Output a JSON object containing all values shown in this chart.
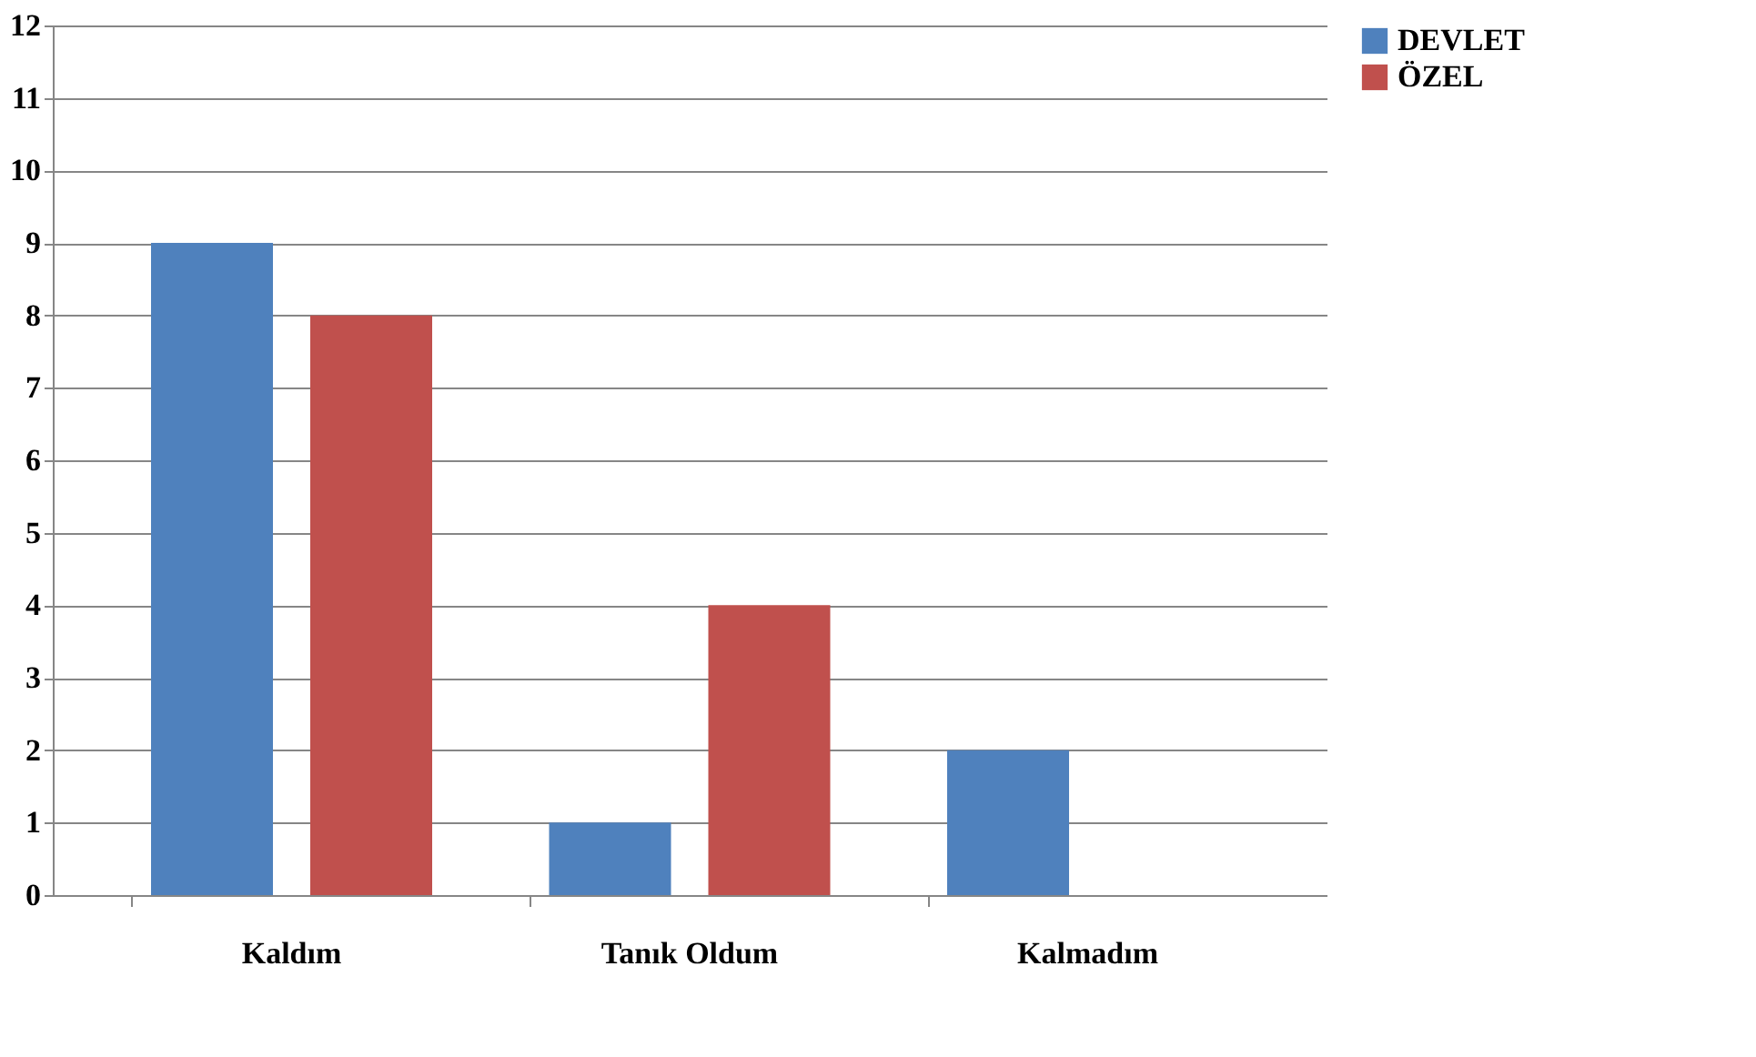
{
  "chart_data": {
    "type": "bar",
    "categories": [
      "Kaldım",
      "Tanık Oldum",
      "Kalmadım"
    ],
    "series": [
      {
        "name": "DEVLET",
        "color": "#4f81bd",
        "values": [
          9,
          1,
          2
        ]
      },
      {
        "name": "ÖZEL",
        "color": "#c0504d",
        "values": [
          8,
          4,
          0
        ]
      }
    ],
    "ylim": [
      0,
      12
    ],
    "yticks": [
      0,
      1,
      2,
      3,
      4,
      5,
      6,
      7,
      8,
      9,
      10,
      11,
      12
    ],
    "grid": "y",
    "legend": "right"
  }
}
